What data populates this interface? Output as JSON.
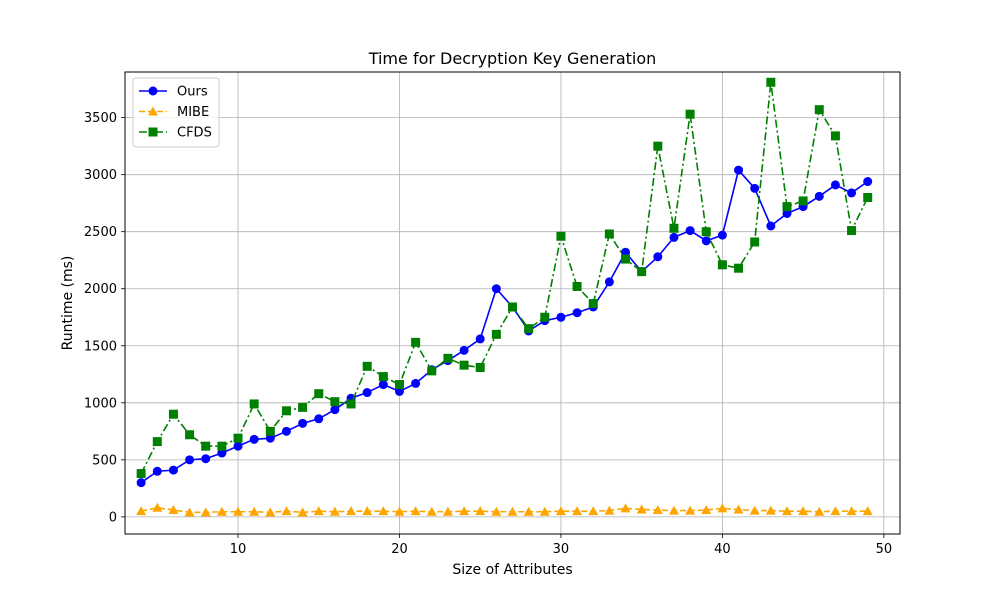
{
  "chart_data": {
    "type": "line",
    "title": "Time for Decryption Key Generation",
    "xlabel": "Size of Attributes",
    "ylabel": "Runtime (ms)",
    "xlim": [
      3,
      51
    ],
    "ylim": [
      -150,
      3900
    ],
    "xticks": [
      10,
      20,
      30,
      40,
      50
    ],
    "yticks": [
      0,
      500,
      1000,
      1500,
      2000,
      2500,
      3000,
      3500
    ],
    "grid": true,
    "legend_position": "top-left",
    "x": [
      4,
      5,
      6,
      7,
      8,
      9,
      10,
      11,
      12,
      13,
      14,
      15,
      16,
      17,
      18,
      19,
      20,
      21,
      22,
      23,
      24,
      25,
      26,
      27,
      28,
      29,
      30,
      31,
      32,
      33,
      34,
      35,
      36,
      37,
      38,
      39,
      40,
      41,
      42,
      43,
      44,
      45,
      46,
      47,
      48,
      49
    ],
    "series": [
      {
        "name": "Ours",
        "color": "#0000ff",
        "line_style": "solid",
        "marker": "circle",
        "values": [
          300,
          400,
          410,
          500,
          510,
          560,
          620,
          680,
          690,
          750,
          820,
          860,
          940,
          1040,
          1090,
          1160,
          1100,
          1170,
          1290,
          1370,
          1460,
          1560,
          2000,
          1840,
          1630,
          1720,
          1750,
          1790,
          1840,
          2060,
          2320,
          2150,
          2280,
          2450,
          2510,
          2420,
          2470,
          3040,
          2880,
          2550,
          2660,
          2720,
          2810,
          2910,
          2840,
          2940
        ]
      },
      {
        "name": "MIBE",
        "color": "#ffa500",
        "line_style": "dashed",
        "marker": "triangle",
        "values": [
          50,
          80,
          60,
          40,
          40,
          45,
          45,
          45,
          40,
          50,
          40,
          50,
          45,
          50,
          50,
          50,
          45,
          50,
          45,
          45,
          50,
          50,
          45,
          45,
          45,
          45,
          50,
          50,
          50,
          55,
          75,
          65,
          60,
          55,
          55,
          60,
          75,
          65,
          55,
          55,
          50,
          50,
          45,
          50,
          50,
          50
        ]
      },
      {
        "name": "CFDS",
        "color": "#008000",
        "line_style": "dashdot",
        "marker": "square",
        "values": [
          380,
          660,
          900,
          720,
          620,
          620,
          690,
          990,
          750,
          930,
          960,
          1080,
          1010,
          990,
          1320,
          1230,
          1160,
          1530,
          1280,
          1390,
          1330,
          1310,
          1600,
          1840,
          1650,
          1750,
          2460,
          2020,
          1870,
          2480,
          2260,
          2150,
          3250,
          2530,
          3530,
          2500,
          2210,
          2180,
          2410,
          3810,
          2720,
          2770,
          3570,
          3340,
          2510,
          2800
        ]
      }
    ]
  }
}
